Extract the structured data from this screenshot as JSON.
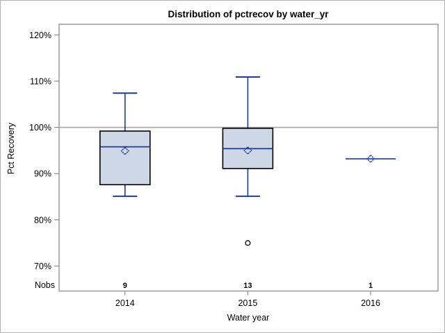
{
  "header": {
    "title": "Distribution of pctrecov by water_yr"
  },
  "chart_data": {
    "type": "boxplot",
    "title": "Distribution of pctrecov by water_yr",
    "xlabel": "Water year",
    "ylabel": "Pct Recovery",
    "categories": [
      "2014",
      "2015",
      "2016"
    ],
    "nobs_label": "Nobs",
    "nobs": [
      9,
      13,
      1
    ],
    "y_ticks": [
      120,
      110,
      100,
      90,
      80,
      70
    ],
    "y_tick_suffix": "%",
    "ylim": [
      64.6,
      122.3
    ],
    "reference_line": 100,
    "grid": false,
    "legend": "none",
    "series": [
      {
        "category": "2014",
        "n": 9,
        "whisker_low": 85.1,
        "q1": 87.6,
        "median": 95.8,
        "q3": 99.2,
        "whisker_high": 107.4,
        "mean": 94.9,
        "outliers": []
      },
      {
        "category": "2015",
        "n": 13,
        "whisker_low": 85.1,
        "q1": 91.1,
        "median": 95.4,
        "q3": 99.8,
        "whisker_high": 110.9,
        "mean": 95.0,
        "outliers": [
          75.0
        ]
      },
      {
        "category": "2016",
        "n": 1,
        "median": 93.2,
        "mean": 93.2,
        "outliers": []
      }
    ],
    "colors": {
      "box_fill": "#cdd7e6",
      "box_stroke": "#000000",
      "line_blue": "#1c3b9e",
      "reference_gray": "#a9a9a9",
      "frame_gray": "#8c8c8c",
      "outlier_stroke": "#000000",
      "text": "#000000",
      "background": "#ffffff"
    }
  }
}
